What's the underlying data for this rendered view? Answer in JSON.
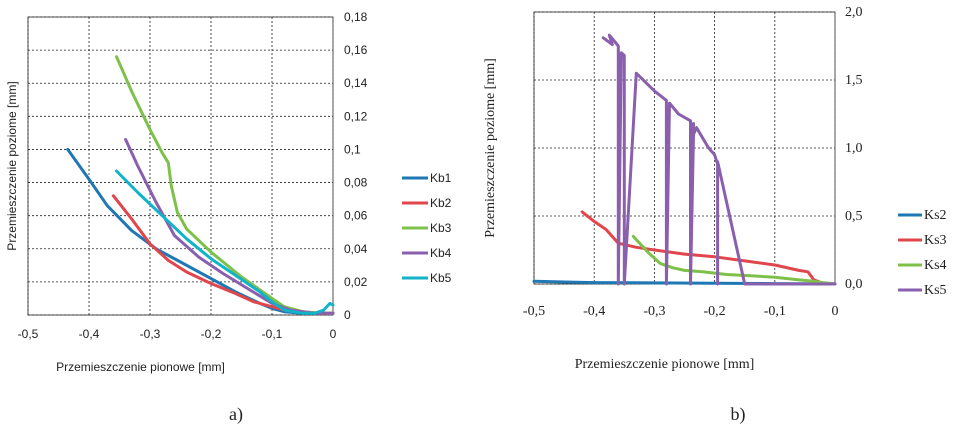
{
  "colors": {
    "Kb1": "#1f77b4",
    "Kb2": "#e0464b",
    "Kb3": "#7dc14a",
    "Kb4": "#8a5fae",
    "Kb5": "#12b3c8",
    "Ks2": "#1f77b4",
    "Ks3": "#e0464b",
    "Ks4": "#7dc14a",
    "Ks5": "#8a5fae"
  },
  "chart_data": [
    {
      "type": "line",
      "panel_label": "a)",
      "xlabel": "Przemieszczenie pionowe [mm]",
      "ylabel": "Przemieszczenie poziome [mm]",
      "xlim": [
        -0.5,
        0
      ],
      "ylim": [
        0,
        0.18
      ],
      "xticks": [
        "-0,5",
        "-0,4",
        "-0,3",
        "-0,2",
        "-0,1",
        "0"
      ],
      "xtick_values": [
        -0.5,
        -0.4,
        -0.3,
        -0.2,
        -0.1,
        0
      ],
      "yticks": [
        "0",
        "0,02",
        "0,04",
        "0,06",
        "0,08",
        "0,1",
        "0,12",
        "0,14",
        "0,16",
        "0,18"
      ],
      "ytick_values": [
        0,
        0.02,
        0.04,
        0.06,
        0.08,
        0.1,
        0.12,
        0.14,
        0.16,
        0.18
      ],
      "y_axis_side": "right",
      "grid": true,
      "legend": "right",
      "series": [
        {
          "name": "Kb1",
          "x": [
            -0.435,
            -0.4,
            -0.37,
            -0.33,
            -0.29,
            -0.25,
            -0.2,
            -0.16,
            -0.12,
            -0.1,
            -0.08,
            -0.05,
            -0.02,
            0
          ],
          "y": [
            0.1,
            0.082,
            0.066,
            0.051,
            0.04,
            0.032,
            0.022,
            0.014,
            0.007,
            0.004,
            0.002,
            0.001,
            0.001,
            0.001
          ]
        },
        {
          "name": "Kb2",
          "x": [
            -0.36,
            -0.33,
            -0.3,
            -0.27,
            -0.24,
            -0.2,
            -0.16,
            -0.13,
            -0.1,
            -0.08,
            -0.05,
            -0.02,
            0
          ],
          "y": [
            0.072,
            0.058,
            0.043,
            0.033,
            0.026,
            0.019,
            0.013,
            0.008,
            0.005,
            0.003,
            0.002,
            0.001,
            0.001
          ]
        },
        {
          "name": "Kb3",
          "x": [
            -0.355,
            -0.33,
            -0.3,
            -0.28,
            -0.27,
            -0.265,
            -0.255,
            -0.24,
            -0.2,
            -0.15,
            -0.1,
            -0.08,
            -0.05,
            -0.02,
            0
          ],
          "y": [
            0.156,
            0.135,
            0.112,
            0.098,
            0.092,
            0.078,
            0.062,
            0.052,
            0.038,
            0.023,
            0.01,
            0.005,
            0.002,
            0.001,
            0.001
          ]
        },
        {
          "name": "Kb4",
          "x": [
            -0.34,
            -0.32,
            -0.29,
            -0.26,
            -0.22,
            -0.18,
            -0.14,
            -0.1,
            -0.07,
            -0.03,
            0
          ],
          "y": [
            0.106,
            0.09,
            0.068,
            0.048,
            0.035,
            0.025,
            0.016,
            0.007,
            0.003,
            0.001,
            0.001
          ]
        },
        {
          "name": "Kb5",
          "x": [
            -0.355,
            -0.32,
            -0.28,
            -0.24,
            -0.2,
            -0.16,
            -0.12,
            -0.1,
            -0.08,
            -0.05,
            -0.03,
            -0.015,
            -0.005,
            0
          ],
          "y": [
            0.087,
            0.074,
            0.06,
            0.046,
            0.034,
            0.024,
            0.014,
            0.008,
            0.003,
            0.001,
            0.001,
            0.003,
            0.007,
            0.006
          ]
        }
      ]
    },
    {
      "type": "line",
      "panel_label": "b)",
      "xlabel": "Przemieszczenie pionowe [mm]",
      "ylabel": "Przemieszczenie poziome [mm]",
      "xlim": [
        -0.5,
        0
      ],
      "ylim": [
        0,
        2.0
      ],
      "xticks": [
        "-0,5",
        "-0,4",
        "-0,3",
        "-0,2",
        "-0,1",
        "0"
      ],
      "xtick_values": [
        -0.5,
        -0.4,
        -0.3,
        -0.2,
        -0.1,
        0
      ],
      "yticks": [
        "0,0",
        "0,5",
        "1,0",
        "1,5",
        "2,0"
      ],
      "ytick_values": [
        0,
        0.5,
        1.0,
        1.5,
        2.0
      ],
      "y_axis_side": "right",
      "grid": true,
      "legend": "right",
      "series": [
        {
          "name": "Ks2",
          "x": [
            -0.5,
            -0.45,
            -0.4,
            -0.3,
            -0.2,
            -0.1,
            0
          ],
          "y": [
            0.02,
            0.015,
            0.01,
            0.008,
            0.005,
            0.003,
            0.001
          ]
        },
        {
          "name": "Ks3",
          "x": [
            -0.42,
            -0.4,
            -0.38,
            -0.36,
            -0.33,
            -0.3,
            -0.25,
            -0.2,
            -0.15,
            -0.1,
            -0.06,
            -0.045,
            -0.035,
            -0.02,
            0
          ],
          "y": [
            0.53,
            0.46,
            0.4,
            0.3,
            0.27,
            0.25,
            0.22,
            0.2,
            0.17,
            0.14,
            0.1,
            0.09,
            0.03,
            0.005,
            0.0
          ]
        },
        {
          "name": "Ks4",
          "x": [
            -0.335,
            -0.31,
            -0.29,
            -0.27,
            -0.25,
            -0.22,
            -0.18,
            -0.14,
            -0.1,
            -0.06,
            -0.035,
            -0.02,
            0
          ],
          "y": [
            0.35,
            0.23,
            0.15,
            0.12,
            0.1,
            0.09,
            0.07,
            0.06,
            0.05,
            0.03,
            0.02,
            0.01,
            0.0
          ]
        },
        {
          "name": "Ks5",
          "x": [
            -0.385,
            -0.37,
            -0.375,
            -0.36,
            -0.36,
            -0.355,
            -0.35,
            -0.35,
            -0.33,
            -0.3,
            -0.28,
            -0.28,
            -0.275,
            -0.26,
            -0.24,
            -0.24,
            -0.235,
            -0.24,
            -0.235,
            -0.23,
            -0.21,
            -0.2,
            -0.195,
            -0.195,
            -0.195,
            -0.15,
            -0.1,
            -0.05,
            0
          ],
          "y": [
            1.81,
            1.76,
            1.83,
            1.75,
            0.0,
            1.7,
            1.68,
            0.0,
            1.55,
            1.42,
            1.35,
            0.0,
            1.33,
            1.25,
            1.2,
            0.0,
            1.18,
            0.0,
            1.1,
            1.15,
            1.0,
            0.95,
            0.88,
            0.0,
            0.9,
            0.0,
            0.0,
            0.0,
            0.0
          ]
        }
      ]
    }
  ]
}
